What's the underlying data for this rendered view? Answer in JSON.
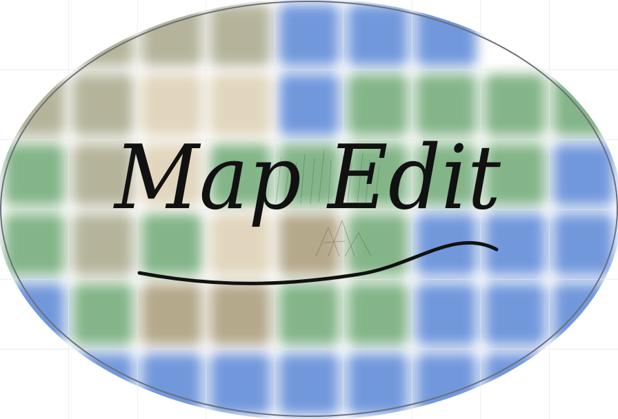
{
  "title": "Map Edit",
  "colors": {
    "background": "#ffffff",
    "water": "#5b86d6",
    "grass": "#6fa874",
    "sand": "#dccfb2",
    "dirt": "#a89a78",
    "khaki": "#a8a78a",
    "outline": "#6b6f7a",
    "ink": "#111111"
  },
  "tile_grid": {
    "rows": [
      [
        "white",
        "khaki",
        "khaki",
        "khaki",
        "water",
        "water",
        "water",
        "white",
        "white"
      ],
      [
        "khaki",
        "khaki",
        "sand",
        "sand",
        "water",
        "grass",
        "grass",
        "grass",
        "grass"
      ],
      [
        "grass",
        "khaki",
        "sand",
        "grass",
        "grass",
        "grass",
        "grass",
        "grass",
        "water"
      ],
      [
        "grass",
        "khaki",
        "grass",
        "sand",
        "dirt",
        "grass",
        "water",
        "water",
        "water"
      ],
      [
        "water",
        "grass",
        "dirt",
        "dirt",
        "grass",
        "grass",
        "water",
        "water",
        "water"
      ],
      [
        "white",
        "water",
        "water",
        "water",
        "water",
        "water",
        "water",
        "water",
        "white"
      ]
    ]
  }
}
